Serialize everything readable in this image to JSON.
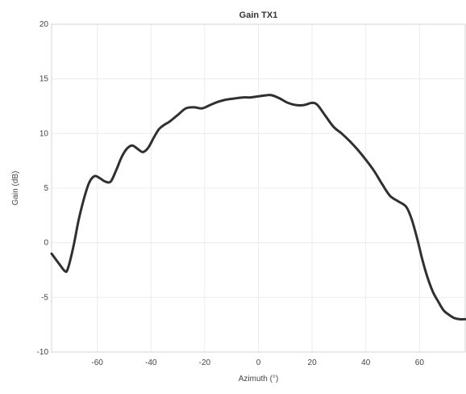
{
  "chart_data": {
    "type": "line",
    "title": "Gain TX1",
    "xlabel": "Azimuth (°)",
    "ylabel": "Gain (dB)",
    "xlim": [
      -77,
      77
    ],
    "ylim": [
      -10,
      20
    ],
    "xticks": [
      -60,
      -40,
      -20,
      0,
      20,
      40,
      60
    ],
    "yticks": [
      -10,
      -5,
      0,
      5,
      10,
      15,
      20
    ],
    "xtick_labels": [
      "-60",
      "-40",
      "-20",
      "0",
      "20",
      "40",
      "60"
    ],
    "ytick_labels": [
      "-10",
      "-5",
      "0",
      "5",
      "10",
      "15",
      "20"
    ],
    "grid": true,
    "line_color": "#303030",
    "series": [
      {
        "x": [
          -77,
          -74,
          -72,
          -71,
          -69,
          -67,
          -65,
          -63,
          -61,
          -59,
          -57,
          -55,
          -53,
          -51,
          -49,
          -47,
          -45,
          -43,
          -41,
          -39,
          -37,
          -35,
          -33,
          -30,
          -27,
          -24,
          -21,
          -18,
          -15,
          -12,
          -9,
          -6,
          -3,
          0,
          3,
          5,
          8,
          11,
          14,
          17,
          20,
          22,
          25,
          28,
          31,
          34,
          37,
          40,
          43,
          46,
          49,
          52,
          55,
          57,
          59,
          61,
          63,
          65,
          67,
          69,
          71,
          73,
          75,
          77
        ],
        "y": [
          -1,
          -2,
          -2.6,
          -2.4,
          -0.5,
          2,
          4,
          5.5,
          6.1,
          5.9,
          5.6,
          5.6,
          6.6,
          7.8,
          8.6,
          8.9,
          8.6,
          8.3,
          8.7,
          9.6,
          10.4,
          10.8,
          11.1,
          11.7,
          12.3,
          12.4,
          12.3,
          12.6,
          12.9,
          13.1,
          13.2,
          13.3,
          13.3,
          13.4,
          13.5,
          13.5,
          13.2,
          12.8,
          12.6,
          12.6,
          12.8,
          12.6,
          11.6,
          10.6,
          10.0,
          9.3,
          8.5,
          7.6,
          6.6,
          5.4,
          4.3,
          3.8,
          3.3,
          2.2,
          0.5,
          -1.5,
          -3.2,
          -4.5,
          -5.4,
          -6.2,
          -6.6,
          -6.9,
          -7.0,
          -7.0
        ]
      }
    ]
  }
}
